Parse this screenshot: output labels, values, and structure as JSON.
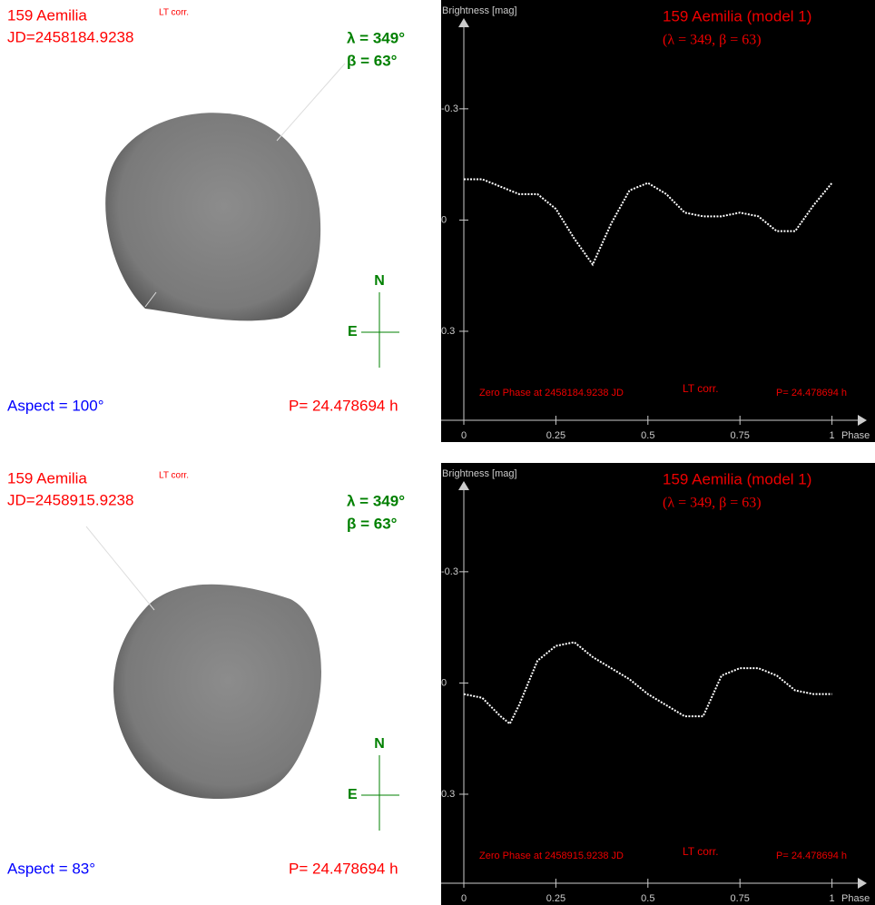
{
  "views": [
    {
      "name": "159 Aemilia",
      "lt_corr": "LT corr.",
      "jd": "JD=2458184.9238",
      "lambda": "λ =  349°",
      "beta": "β =   63°",
      "north": "N",
      "east": "E",
      "aspect": "Aspect = 100°",
      "period": "P= 24.478694 h"
    },
    {
      "name": "159 Aemilia",
      "lt_corr": "LT corr.",
      "jd": "JD=2458915.9238",
      "lambda": "λ =  349°",
      "beta": "β =   63°",
      "north": "N",
      "east": "E",
      "aspect": "Aspect = 83°",
      "period": "P= 24.478694 h"
    }
  ],
  "chart_data": [
    {
      "type": "line",
      "title": "159 Aemilia  (model 1)",
      "subtitle": "(λ = 349, β = 63)",
      "y_label": "Brightness [mag]",
      "x_label": "Phase",
      "annotations": [
        "Zero Phase at  2458184.9238 JD",
        "LT corr.",
        "P= 24.478694 h"
      ],
      "x": [
        0,
        0.05,
        0.1,
        0.15,
        0.2,
        0.25,
        0.3,
        0.35,
        0.4,
        0.45,
        0.5,
        0.55,
        0.6,
        0.65,
        0.7,
        0.75,
        0.8,
        0.85,
        0.9,
        0.95,
        1
      ],
      "series": [
        {
          "color": "#ffffff",
          "values": [
            -0.11,
            -0.11,
            -0.09,
            -0.07,
            -0.07,
            -0.03,
            0.05,
            0.12,
            0.01,
            -0.08,
            -0.1,
            -0.07,
            -0.02,
            -0.01,
            -0.01,
            -0.02,
            -0.01,
            0.03,
            0.03,
            -0.04,
            -0.1
          ]
        }
      ],
      "xlim": [
        0,
        1.07
      ],
      "xticks": [
        0,
        0.25,
        0.5,
        0.75,
        1
      ],
      "ylim": [
        -0.52,
        0.54
      ],
      "yticks": [
        -0.3,
        0,
        0.3
      ],
      "y_inverted": true
    },
    {
      "type": "line",
      "title": "159 Aemilia  (model 1)",
      "subtitle": "(λ = 349, β = 63)",
      "y_label": "Brightness [mag]",
      "x_label": "Phase",
      "annotations": [
        "Zero Phase at  2458915.9238 JD",
        "LT corr.",
        "P= 24.478694 h"
      ],
      "x": [
        0,
        0.05,
        0.1,
        0.125,
        0.15,
        0.2,
        0.25,
        0.3,
        0.35,
        0.4,
        0.45,
        0.5,
        0.55,
        0.6,
        0.65,
        0.7,
        0.75,
        0.8,
        0.85,
        0.9,
        0.95,
        1
      ],
      "series": [
        {
          "color": "#ffffff",
          "values": [
            0.03,
            0.04,
            0.09,
            0.11,
            0.06,
            -0.06,
            -0.1,
            -0.11,
            -0.07,
            -0.04,
            -0.01,
            0.03,
            0.06,
            0.09,
            0.09,
            -0.02,
            -0.04,
            -0.04,
            -0.02,
            0.02,
            0.03,
            0.03
          ]
        }
      ],
      "xlim": [
        0,
        1.07
      ],
      "xticks": [
        0,
        0.25,
        0.5,
        0.75,
        1
      ],
      "ylim": [
        -0.52,
        0.54
      ],
      "yticks": [
        -0.3,
        0,
        0.3
      ],
      "y_inverted": true
    }
  ]
}
